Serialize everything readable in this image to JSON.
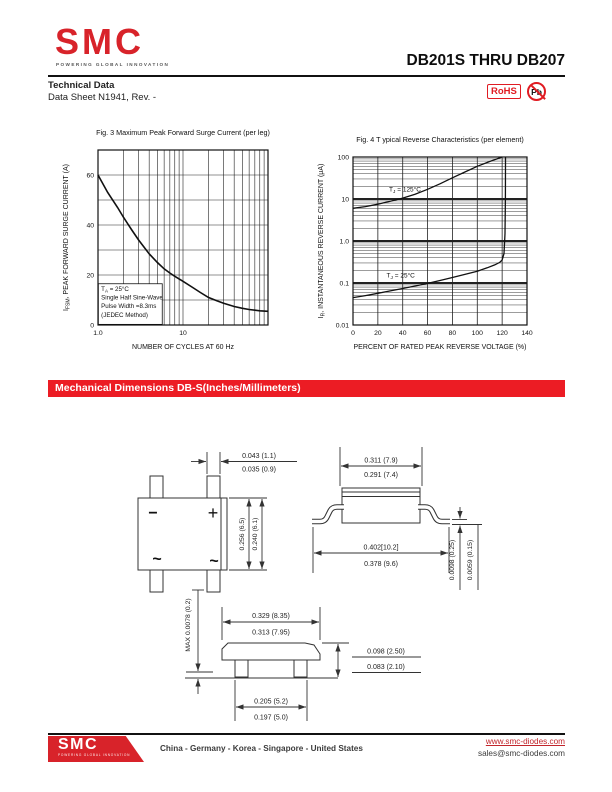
{
  "header": {
    "logo_text": "SMC",
    "logo_tagline": "POWERING GLOBAL INNOVATION",
    "title": "DB201S THRU DB207",
    "doc_type": "Technical Data",
    "doc_number": "Data Sheet N1941, Rev. -",
    "rohs_label": "RoHS",
    "pb_label": "Pb"
  },
  "section": {
    "mech_title": "Mechanical Dimensions DB-S(Inches/Millimeters)"
  },
  "chart_data": [
    {
      "type": "line",
      "title": "Fig. 3 Maximum Peak Forward Surge Current (per leg)",
      "xlabel": "NUMBER OF CYCLES AT 60 Hz",
      "ylabel_pre": "I",
      "ylabel_sub": "FSM",
      "ylabel_rest": ", PEAK FORWARD SURGE CURRENT (A)",
      "xscale": "log",
      "yscale": "linear",
      "xlim": [
        1,
        100
      ],
      "ylim": [
        0,
        70
      ],
      "grids": [
        {
          "axis": "x",
          "w": 0.6,
          "values": [
            2,
            3,
            4,
            5,
            6,
            7,
            8,
            9,
            10,
            20,
            30,
            40,
            50,
            60,
            70,
            80,
            90
          ]
        },
        {
          "axis": "y",
          "w": 0.6,
          "values": [
            10,
            20,
            30,
            40,
            50,
            60
          ]
        }
      ],
      "x_ticks": [
        {
          "v": 1,
          "label": "1.0"
        },
        {
          "v": 10,
          "label": "10"
        }
      ],
      "y_ticks": [
        {
          "v": 0,
          "label": "0"
        },
        {
          "v": 20,
          "label": "20"
        },
        {
          "v": 40,
          "label": "40"
        },
        {
          "v": 60,
          "label": "60"
        }
      ],
      "lw": 1.6,
      "series": [
        {
          "name": "peak forward surge current",
          "points": [
            [
              1,
              60
            ],
            [
              1.3,
              53
            ],
            [
              1.7,
              47
            ],
            [
              2,
              43
            ],
            [
              2.5,
              38
            ],
            [
              3,
              34
            ],
            [
              4,
              28.5
            ],
            [
              5,
              25
            ],
            [
              6,
              22.5
            ],
            [
              7,
              20.8
            ],
            [
              8,
              19.5
            ],
            [
              10,
              17.5
            ],
            [
              13,
              15
            ],
            [
              16,
              13
            ],
            [
              20,
              11
            ],
            [
              25,
              9.7
            ],
            [
              30,
              8.7
            ],
            [
              40,
              7.4
            ],
            [
              50,
              6.7
            ],
            [
              60,
              6.2
            ],
            [
              80,
              5.7
            ],
            [
              100,
              5.5
            ]
          ]
        }
      ],
      "annotations": [
        {
          "x": 1.09,
          "y": 13.6,
          "fs": 6.2,
          "lh": 8.6,
          "box": [
            1.01,
            0.25,
            5.7,
            16.5
          ],
          "lines": [
            {
              "pre": "T",
              "sub": "A",
              "rest": " = 25°C"
            },
            "Single Half Sine-Wave",
            "Pulse Width =8.3ms",
            "(JEDEC Method)"
          ]
        }
      ]
    },
    {
      "type": "line",
      "title": "Fig. 4 T ypical Reverse Characteristics (per element)",
      "xlabel": "PERCENT OF RATED PEAK REVERSE VOLTAGE (%)",
      "ylabel_pre": "I",
      "ylabel_sub": "R",
      "ylabel_rest": ", INSTANTANEOUS REVERSE CURRENT (μA)",
      "xscale": "linear",
      "yscale": "log",
      "xlim": [
        0,
        140
      ],
      "ylim": [
        0.01,
        100
      ],
      "grids": [
        {
          "axis": "x",
          "w": 0.8,
          "values": [
            20,
            40,
            60,
            80,
            100,
            120
          ]
        },
        {
          "axis": "y",
          "w": 1.9,
          "values": [
            0.1,
            1,
            10
          ]
        },
        {
          "axis": "y",
          "w": 0.45,
          "values": [
            0.02,
            0.03,
            0.04,
            0.05,
            0.06,
            0.07,
            0.08,
            0.09,
            0.2,
            0.3,
            0.4,
            0.5,
            0.6,
            0.7,
            0.8,
            0.9,
            2,
            3,
            4,
            5,
            6,
            7,
            8,
            9,
            20,
            30,
            40,
            50,
            60,
            70,
            80,
            90
          ]
        }
      ],
      "x_ticks": [
        {
          "v": 0,
          "label": "0"
        },
        {
          "v": 20,
          "label": "20"
        },
        {
          "v": 40,
          "label": "40"
        },
        {
          "v": 60,
          "label": "60"
        },
        {
          "v": 80,
          "label": "80"
        },
        {
          "v": 100,
          "label": "100"
        },
        {
          "v": 120,
          "label": "120"
        },
        {
          "v": 140,
          "label": "140"
        }
      ],
      "y_ticks": [
        {
          "v": 100,
          "label": "100"
        },
        {
          "v": 10,
          "label": "10"
        },
        {
          "v": 1,
          "label": "1.0"
        },
        {
          "v": 0.1,
          "label": "0.1"
        },
        {
          "v": 0.01,
          "label": "0.01"
        }
      ],
      "lw": 1.3,
      "series": [
        {
          "name": "TJ = 125°C",
          "points": [
            [
              0,
              6
            ],
            [
              10,
              6.6
            ],
            [
              20,
              7.5
            ],
            [
              30,
              8.8
            ],
            [
              40,
              10.5
            ],
            [
              50,
              13
            ],
            [
              60,
              17
            ],
            [
              70,
              23
            ],
            [
              80,
              32
            ],
            [
              90,
              44
            ],
            [
              100,
              60
            ],
            [
              110,
              78
            ],
            [
              118,
              95
            ],
            [
              120,
              100
            ]
          ]
        },
        {
          "name": "TJ = 25°C",
          "points": [
            [
              0,
              0.045
            ],
            [
              10,
              0.05
            ],
            [
              20,
              0.057
            ],
            [
              30,
              0.065
            ],
            [
              40,
              0.074
            ],
            [
              50,
              0.085
            ],
            [
              60,
              0.098
            ],
            [
              70,
              0.115
            ],
            [
              80,
              0.135
            ],
            [
              90,
              0.16
            ],
            [
              100,
              0.19
            ],
            [
              108,
              0.23
            ],
            [
              114,
              0.27
            ],
            [
              118,
              0.31
            ],
            [
              120,
              0.35
            ],
            [
              121.5,
              0.5
            ],
            [
              122.3,
              1.5
            ],
            [
              122.6,
              10
            ],
            [
              122.7,
              100
            ]
          ]
        }
      ],
      "annotations": [
        {
          "x": 29,
          "y": 15,
          "fs": 6.5,
          "lines": [
            {
              "pre": "T",
              "sub": "J",
              "rest": " = 125°C"
            }
          ]
        },
        {
          "x": 27,
          "y": 0.135,
          "fs": 6.5,
          "lines": [
            {
              "pre": "T",
              "sub": "J",
              "rest": " = 25°C"
            }
          ]
        }
      ]
    }
  ],
  "mech": {
    "topview": {
      "minus": "−",
      "plus": "+",
      "ac1": "~",
      "ac2": "~",
      "pin_width": [
        "0.043 (1.1)",
        "0.035 (0.9)"
      ],
      "body_height": [
        "0.256 (6.5)",
        "0.240 (6.1)"
      ]
    },
    "sideview": {
      "body_width": [
        "0.311 (7.9)",
        "0.291 (7.4)"
      ],
      "lead_span": [
        "0.402[10.2]",
        "0.378 (9.6)"
      ],
      "lead_thk": [
        "0.0098 (0.25)",
        "0.0059 (0.15)"
      ]
    },
    "endview": {
      "body_width": [
        "0.329 (8.35)",
        "0.313 (7.95)"
      ],
      "height": [
        "0.098 (2.50)",
        "0.083 (2.10)"
      ],
      "pin_pitch": [
        "0.205 (5.2)",
        "0.197 (5.0)"
      ],
      "standoff": "MAX 0.0078 (0.2)"
    }
  },
  "footer": {
    "logo_text": "SMC",
    "logo_tagline": "POWERING GLOBAL INNOVATION",
    "regions": "China - Germany - Korea - Singapore - United States",
    "website": "www.smc-diodes.com",
    "email": "sales@smc-diodes.com"
  },
  "colors": {
    "brand_red": "#d8232a",
    "banner_red": "#ec1c24"
  }
}
